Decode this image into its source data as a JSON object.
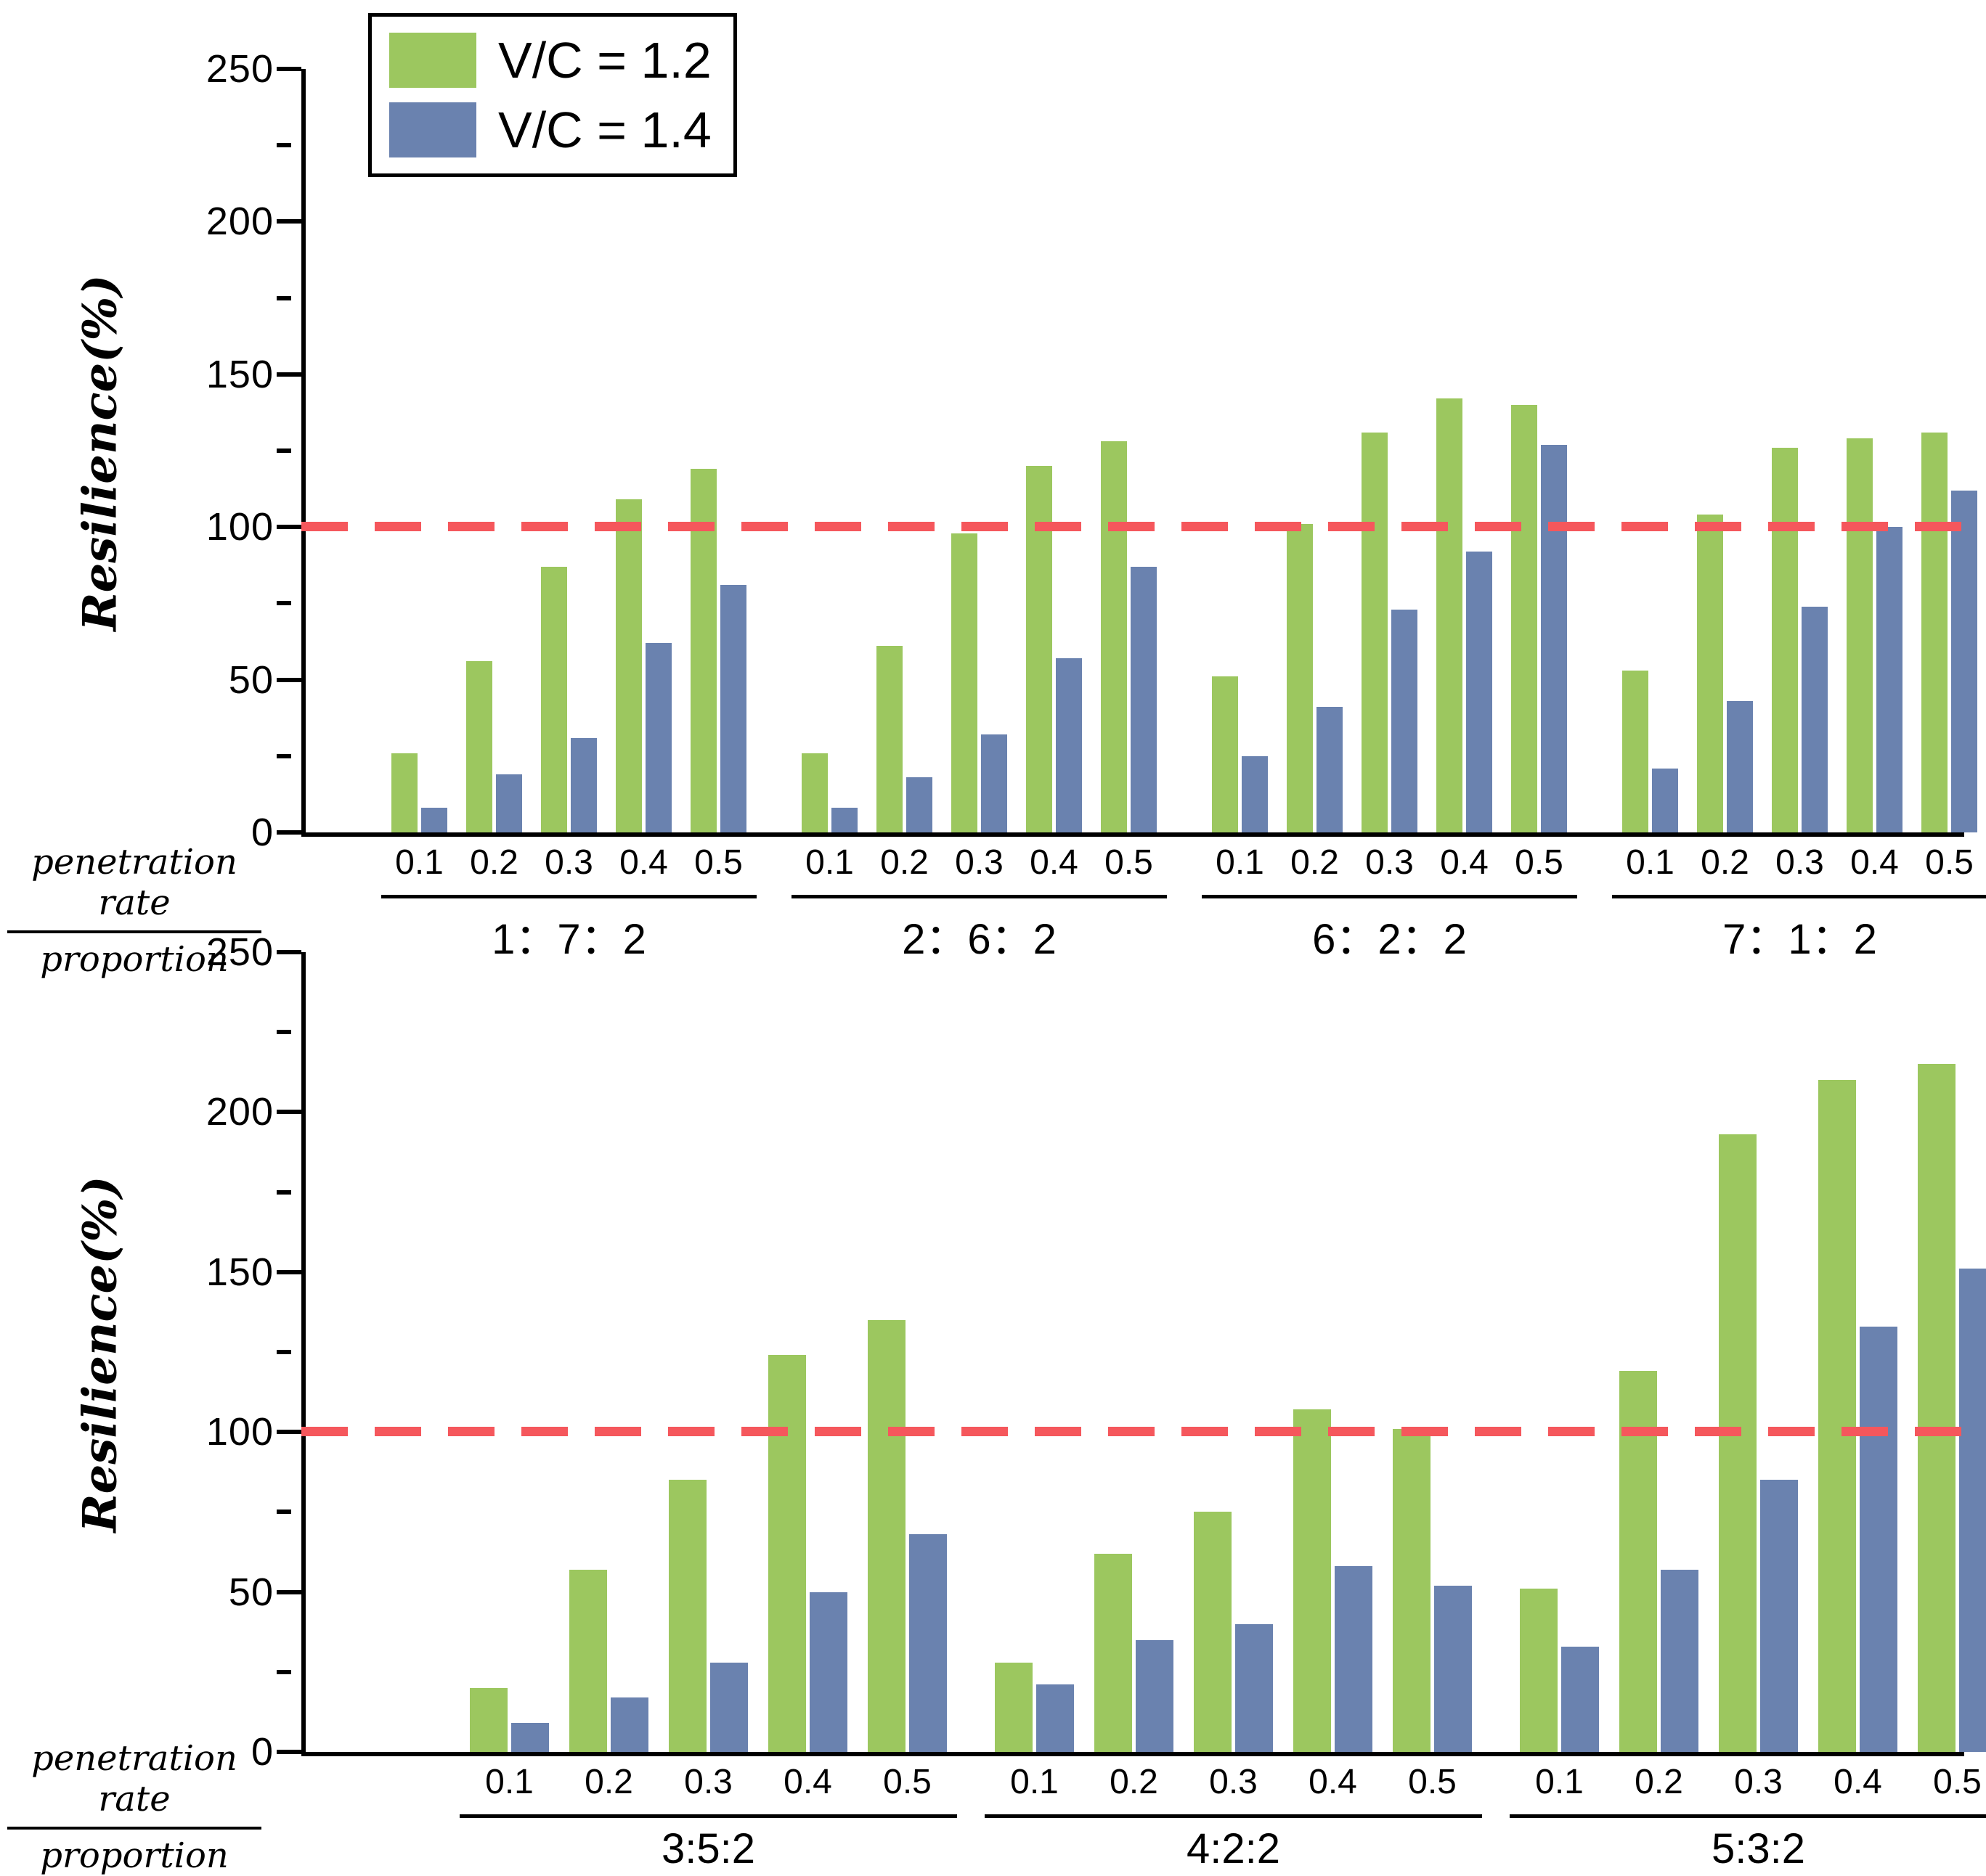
{
  "legend": {
    "items": [
      {
        "label": "V/C = 1.2",
        "color": "#9CC75F"
      },
      {
        "label": "V/C = 1.4",
        "color": "#6A82AF"
      }
    ]
  },
  "colors": {
    "green": "#9CC75F",
    "blue": "#6A82AF",
    "reference_red": "#F5575C",
    "axis": "#000000"
  },
  "axis_labels": {
    "y_label": "Resilience(%)",
    "x_fraction_numerator": "penetration rate",
    "x_fraction_denominator": "proportion"
  },
  "chart_data": [
    {
      "type": "bar",
      "panel": "top",
      "ylabel": "Resilience(%)",
      "ylim": [
        0,
        250
      ],
      "ytick_major": 50,
      "ytick_minor": 25,
      "grid": false,
      "legend_position": "top-left",
      "reference_line": 100,
      "categories": [
        "0.1",
        "0.2",
        "0.3",
        "0.4",
        "0.5"
      ],
      "groups": [
        {
          "label": "1：7：2",
          "series": [
            {
              "name": "V/C = 1.2",
              "values": [
                26,
                56,
                87,
                109,
                119
              ]
            },
            {
              "name": "V/C = 1.4",
              "values": [
                8,
                19,
                31,
                62,
                81
              ]
            }
          ]
        },
        {
          "label": "2：6：2",
          "series": [
            {
              "name": "V/C = 1.2",
              "values": [
                26,
                61,
                98,
                120,
                128
              ]
            },
            {
              "name": "V/C = 1.4",
              "values": [
                8,
                18,
                32,
                57,
                87
              ]
            }
          ]
        },
        {
          "label": "6：2：2",
          "series": [
            {
              "name": "V/C = 1.2",
              "values": [
                51,
                101,
                131,
                142,
                140
              ]
            },
            {
              "name": "V/C = 1.4",
              "values": [
                25,
                41,
                73,
                92,
                127
              ]
            }
          ]
        },
        {
          "label": "7：1：2",
          "series": [
            {
              "name": "V/C = 1.2",
              "values": [
                53,
                104,
                126,
                129,
                131
              ]
            },
            {
              "name": "V/C = 1.4",
              "values": [
                21,
                43,
                74,
                100,
                112
              ]
            }
          ]
        }
      ]
    },
    {
      "type": "bar",
      "panel": "bottom",
      "ylabel": "Resilience(%)",
      "ylim": [
        0,
        250
      ],
      "ytick_major": 50,
      "ytick_minor": 25,
      "grid": false,
      "reference_line": 100,
      "categories": [
        "0.1",
        "0.2",
        "0.3",
        "0.4",
        "0.5"
      ],
      "groups": [
        {
          "label": "3:5:2",
          "series": [
            {
              "name": "V/C = 1.2",
              "values": [
                20,
                57,
                85,
                124,
                135
              ]
            },
            {
              "name": "V/C = 1.4",
              "values": [
                9,
                17,
                28,
                50,
                68
              ]
            }
          ]
        },
        {
          "label": "4:2:2",
          "series": [
            {
              "name": "V/C = 1.2",
              "values": [
                28,
                62,
                75,
                107,
                101
              ]
            },
            {
              "name": "V/C = 1.4",
              "values": [
                21,
                35,
                40,
                58,
                52
              ]
            }
          ]
        },
        {
          "label": "5:3:2",
          "series": [
            {
              "name": "V/C = 1.2",
              "values": [
                51,
                119,
                193,
                210,
                215
              ]
            },
            {
              "name": "V/C = 1.4",
              "values": [
                33,
                57,
                85,
                133,
                151
              ]
            }
          ]
        }
      ]
    }
  ]
}
